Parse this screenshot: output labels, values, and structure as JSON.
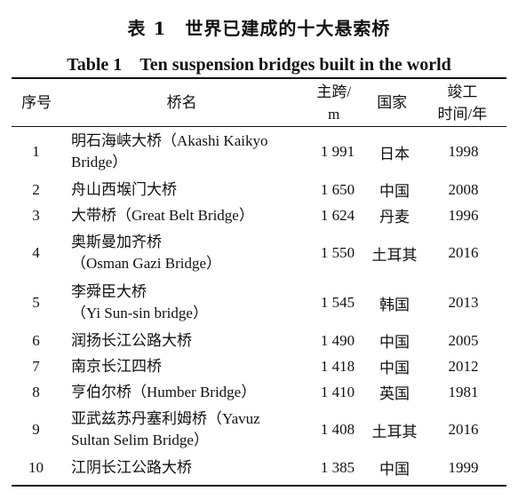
{
  "title_cn": "表 1　世界已建成的十大悬索桥",
  "title_en": "Table 1　Ten suspension bridges built in the world",
  "headers": {
    "no": "序号",
    "name": "桥名",
    "span_l1": "主跨/",
    "span_l2": "m",
    "country": "国家",
    "year_l1": "竣工",
    "year_l2": "时间/年"
  },
  "rows": [
    {
      "no": "1",
      "name_l1": "明石海峡大桥（Akashi Kaikyo",
      "name_l2": "Bridge）",
      "span": "1 991",
      "country": "日本",
      "year": "1998"
    },
    {
      "no": "2",
      "name_l1": "舟山西堠门大桥",
      "name_l2": "",
      "span": "1 650",
      "country": "中国",
      "year": "2008"
    },
    {
      "no": "3",
      "name_l1": "大带桥（Great Belt Bridge）",
      "name_l2": "",
      "span": "1 624",
      "country": "丹麦",
      "year": "1996"
    },
    {
      "no": "4",
      "name_l1": "奥斯曼加齐桥",
      "name_l2": "（Osman Gazi Bridge）",
      "span": "1 550",
      "country": "土耳其",
      "year": "2016"
    },
    {
      "no": "5",
      "name_l1": "李舜臣大桥",
      "name_l2": "（Yi Sun-sin bridge）",
      "span": "1 545",
      "country": "韩国",
      "year": "2013"
    },
    {
      "no": "6",
      "name_l1": "润扬长江公路大桥",
      "name_l2": "",
      "span": "1 490",
      "country": "中国",
      "year": "2005"
    },
    {
      "no": "7",
      "name_l1": "南京长江四桥",
      "name_l2": "",
      "span": "1 418",
      "country": "中国",
      "year": "2012"
    },
    {
      "no": "8",
      "name_l1": "亨伯尔桥（Humber Bridge）",
      "name_l2": "",
      "span": "1 410",
      "country": "英国",
      "year": "1981"
    },
    {
      "no": "9",
      "name_l1": "亚武兹苏丹塞利姆桥（Yavuz",
      "name_l2": "Sultan Selim Bridge）",
      "span": "1 408",
      "country": "土耳其",
      "year": "2016"
    },
    {
      "no": "10",
      "name_l1": "江阴长江公路大桥",
      "name_l2": "",
      "span": "1 385",
      "country": "中国",
      "year": "1999"
    }
  ]
}
